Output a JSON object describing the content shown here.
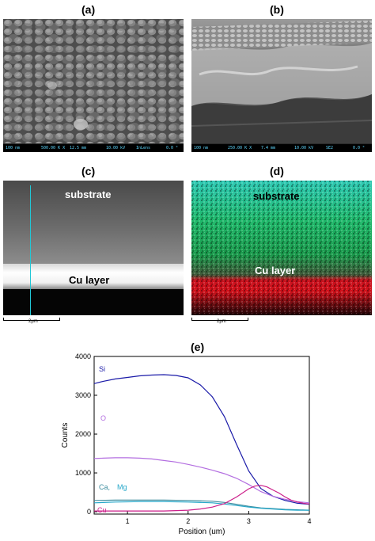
{
  "panels": {
    "a": {
      "label": "(a)",
      "info": {
        "scale": "100 nm",
        "mag": "500.00 K X",
        "wd": "12.5 mm",
        "kv": "10.00 kV",
        "det": "InLens",
        "tilt": "0.0 °"
      }
    },
    "b": {
      "label": "(b)",
      "info": {
        "scale": "100 nm",
        "mag": "250.00 K X",
        "wd": "7.4 mm",
        "kv": "10.00 kV",
        "det": "SE2",
        "tilt": "0.0 °"
      }
    },
    "c": {
      "label": "(c)",
      "substrate": "substrate",
      "layer": "Cu layer",
      "scale": "2μm"
    },
    "d": {
      "label": "(d)",
      "substrate": "substrate",
      "layer": "Cu layer",
      "scale": "2μm"
    },
    "e": {
      "label": "(e)"
    }
  },
  "colors": {
    "Si": "#1a1aa8",
    "O": "#b36ee0",
    "Ca": "#3b8c9e",
    "Mg": "#25a7c9",
    "Cu": "#cc1f8a",
    "eds_line": "#22c7d6"
  },
  "chart_data": {
    "type": "line",
    "xlabel": "Position (um)",
    "ylabel": "Counts",
    "xlim": [
      0.45,
      4.0
    ],
    "ylim": [
      -60,
      4000
    ],
    "xticks": [
      1,
      2,
      3,
      4
    ],
    "yticks": [
      0,
      1000,
      2000,
      3000,
      4000
    ],
    "series": [
      {
        "name": "Si",
        "color": "#1a1aa8",
        "x": [
          0.45,
          0.6,
          0.8,
          1.0,
          1.2,
          1.4,
          1.6,
          1.8,
          2.0,
          2.2,
          2.4,
          2.6,
          2.8,
          3.0,
          3.2,
          3.4,
          3.6,
          3.8,
          4.0
        ],
        "y": [
          3300,
          3360,
          3420,
          3460,
          3500,
          3520,
          3530,
          3510,
          3450,
          3270,
          2960,
          2450,
          1730,
          1050,
          600,
          400,
          290,
          220,
          190
        ]
      },
      {
        "name": "O",
        "color": "#b36ee0",
        "x": [
          0.45,
          0.6,
          0.8,
          1.0,
          1.2,
          1.4,
          1.6,
          1.8,
          2.0,
          2.2,
          2.4,
          2.6,
          2.8,
          3.0,
          3.2,
          3.4,
          3.6,
          3.8,
          4.0
        ],
        "y": [
          1370,
          1380,
          1390,
          1390,
          1380,
          1360,
          1320,
          1280,
          1220,
          1150,
          1070,
          980,
          860,
          700,
          520,
          400,
          320,
          260,
          230
        ]
      },
      {
        "name": "Ca",
        "color": "#3b8c9e",
        "x": [
          0.45,
          0.8,
          1.2,
          1.6,
          2.0,
          2.4,
          2.6,
          2.8,
          3.0,
          3.2,
          3.4,
          3.6,
          3.8,
          4.0
        ],
        "y": [
          290,
          300,
          300,
          300,
          290,
          270,
          240,
          190,
          140,
          100,
          80,
          60,
          50,
          40
        ]
      },
      {
        "name": "Mg",
        "color": "#25a7c9",
        "x": [
          0.45,
          0.8,
          1.2,
          1.6,
          2.0,
          2.4,
          2.6,
          2.8,
          3.0,
          3.2,
          3.4,
          3.6,
          3.8,
          4.0
        ],
        "y": [
          230,
          250,
          260,
          260,
          250,
          230,
          200,
          160,
          120,
          90,
          70,
          50,
          40,
          40
        ]
      },
      {
        "name": "Cu",
        "color": "#cc1f8a",
        "x": [
          0.45,
          0.8,
          1.2,
          1.6,
          2.0,
          2.2,
          2.4,
          2.6,
          2.8,
          3.0,
          3.1,
          3.2,
          3.3,
          3.4,
          3.5,
          3.6,
          3.7,
          3.8,
          3.9,
          4.0
        ],
        "y": [
          20,
          20,
          20,
          20,
          40,
          70,
          120,
          210,
          380,
          590,
          660,
          680,
          640,
          560,
          480,
          380,
          300,
          250,
          220,
          200
        ]
      }
    ],
    "labels": [
      {
        "text": "Si",
        "color": "#1a1aa8"
      },
      {
        "text": "O",
        "color": "#b36ee0"
      },
      {
        "text": "Ca,",
        "color": "#3b8c9e"
      },
      {
        "text": "Mg",
        "color": "#25a7c9"
      },
      {
        "text": "Cu",
        "color": "#cc1f8a"
      }
    ]
  }
}
